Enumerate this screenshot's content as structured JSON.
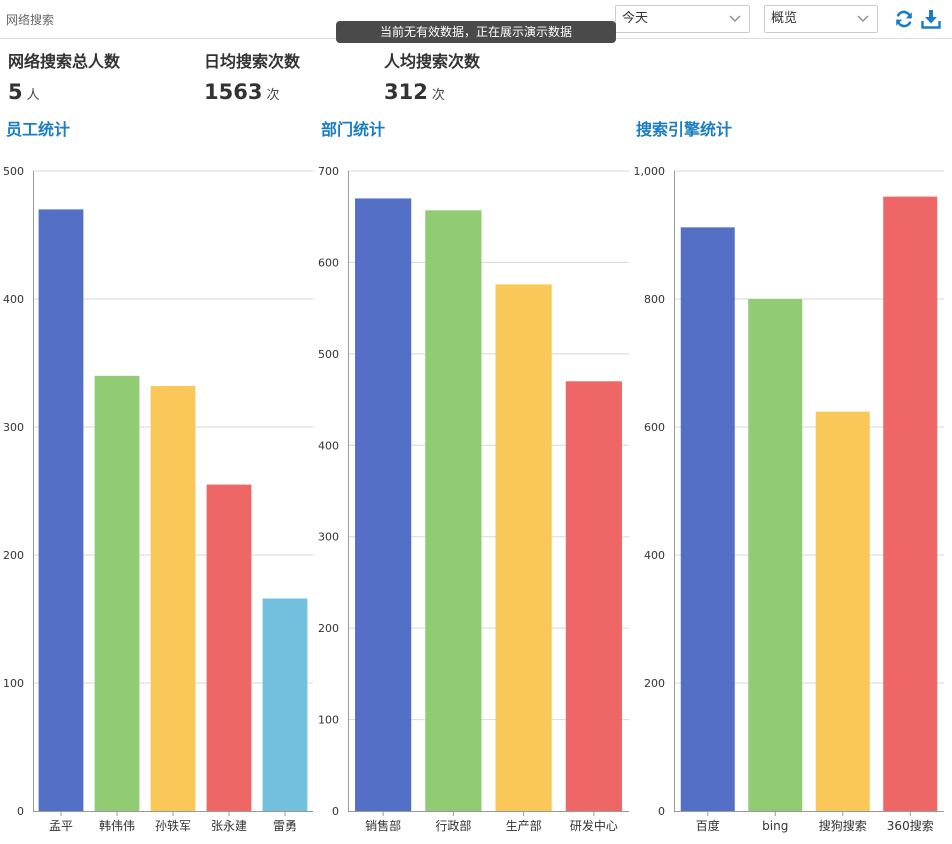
{
  "header": {
    "title": "网络搜索",
    "toast": "当前无有效数据，正在展示演示数据",
    "date_select": "今天",
    "view_select": "概览",
    "icons": [
      "refresh-icon",
      "download-icon"
    ],
    "accent": "#1a7dc4"
  },
  "stats": [
    {
      "label": "网络搜索总人数",
      "value": "5",
      "unit": "人"
    },
    {
      "label": "日均搜索次数",
      "value": "1563",
      "unit": "次"
    },
    {
      "label": "人均搜索次数",
      "value": "312",
      "unit": "次"
    }
  ],
  "sections": {
    "employee": "员工统计",
    "department": "部门统计",
    "engine": "搜索引擎统计"
  },
  "chart_data": [
    {
      "type": "bar",
      "title": "员工统计",
      "categories": [
        "孟平",
        "韩伟伟",
        "孙轶军",
        "张永建",
        "雷勇"
      ],
      "values": [
        470,
        340,
        332,
        255,
        166
      ],
      "ylim": [
        0,
        500
      ],
      "ticks": [
        "0",
        "100",
        "200",
        "300",
        "400",
        "500"
      ],
      "colors": [
        "#5470c6",
        "#91cc75",
        "#fac858",
        "#ee6666",
        "#73c0de"
      ],
      "grid": true,
      "legend": "none"
    },
    {
      "type": "bar",
      "title": "部门统计",
      "categories": [
        "销售部",
        "行政部",
        "生产部",
        "研发中心"
      ],
      "values": [
        670,
        657,
        576,
        470
      ],
      "ylim": [
        0,
        700
      ],
      "ticks": [
        "0",
        "100",
        "200",
        "300",
        "400",
        "500",
        "600",
        "700"
      ],
      "colors": [
        "#5470c6",
        "#91cc75",
        "#fac858",
        "#ee6666"
      ],
      "grid": true,
      "legend": "none"
    },
    {
      "type": "bar",
      "title": "搜索引擎统计",
      "categories": [
        "百度",
        "bing",
        "搜狗搜索",
        "360搜索"
      ],
      "values": [
        912,
        800,
        624,
        960
      ],
      "ylim": [
        0,
        1000
      ],
      "ticks": [
        "0",
        "200",
        "400",
        "600",
        "800",
        "1,000"
      ],
      "colors": [
        "#5470c6",
        "#91cc75",
        "#fac858",
        "#ee6666"
      ],
      "grid": true,
      "legend": "none"
    }
  ]
}
